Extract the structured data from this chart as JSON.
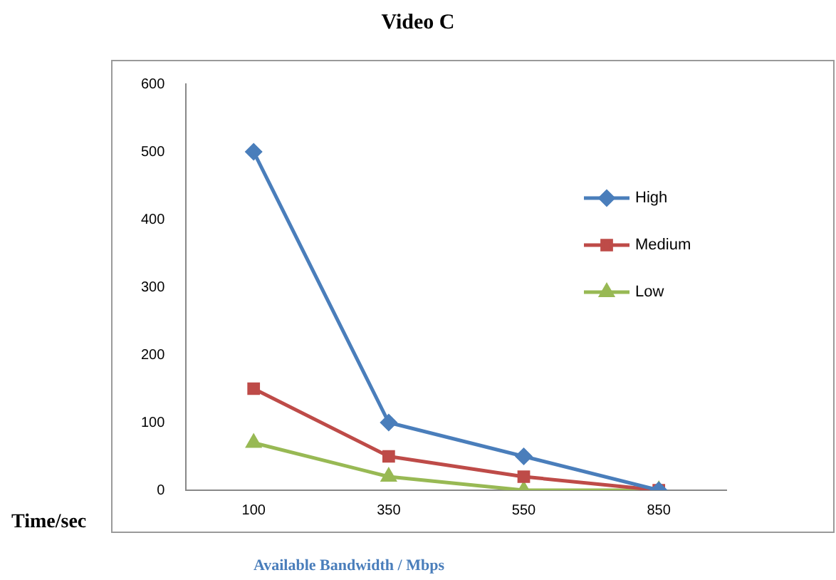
{
  "chart_data": {
    "type": "line",
    "title": "Video C",
    "xlabel": "Available Bandwidth / Mbps",
    "ylabel": "Time/sec",
    "categories": [
      "100",
      "350",
      "550",
      "850"
    ],
    "series": [
      {
        "name": "High",
        "color": "#4a7ebb",
        "values": [
          500,
          100,
          50,
          0
        ],
        "marker": "diamond"
      },
      {
        "name": "Medium",
        "color": "#be4b48",
        "values": [
          150,
          50,
          20,
          0
        ],
        "marker": "square"
      },
      {
        "name": "Low",
        "color": "#98b954",
        "values": [
          70,
          20,
          0,
          0
        ],
        "marker": "triangle"
      }
    ],
    "ylim": [
      0,
      600
    ],
    "yticks": [
      0,
      100,
      200,
      300,
      400,
      500,
      600
    ],
    "grid": false,
    "legend": "right",
    "line_style": "solid"
  }
}
